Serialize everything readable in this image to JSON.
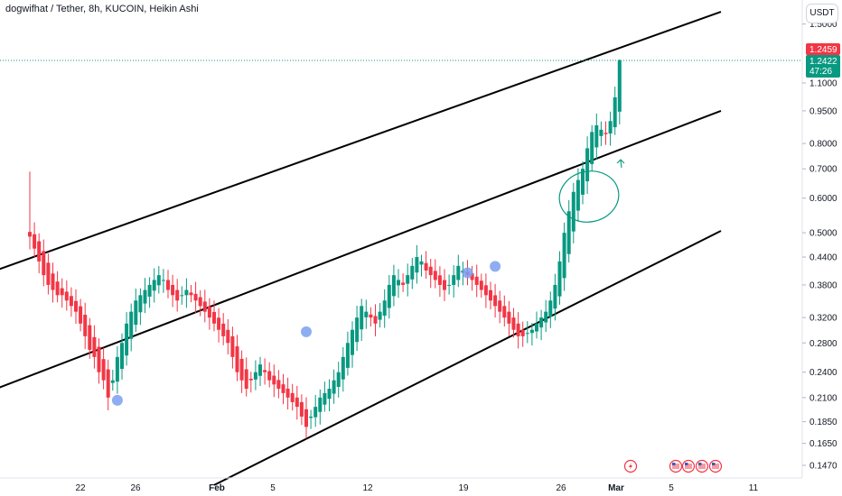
{
  "header": {
    "title": "dogwifhat / Tether, 8h, KUCOIN, Heikin Ashi",
    "currency": "USDT"
  },
  "price_tags": {
    "high_price": "1.2459",
    "last_price": "1.2422",
    "countdown": "47:26",
    "high_color": "#f23645",
    "last_color": "#089981"
  },
  "colors": {
    "up": "#089981",
    "down": "#f23645",
    "channel": "#000000",
    "marker": "#7b9ff0",
    "annotation": "#089981",
    "event_icon": "#f23645"
  },
  "chart_data": {
    "type": "candlestick",
    "style": "Heikin Ashi",
    "symbol": "dogwifhat / Tether",
    "interval": "8h",
    "exchange": "KUCOIN",
    "y_scale": "log",
    "ylim": [
      0.138,
      1.6
    ],
    "y_ticks": [
      "1.5000",
      "1.1000",
      "0.9500",
      "0.8000",
      "0.7000",
      "0.6000",
      "0.5000",
      "0.4400",
      "0.3800",
      "0.3200",
      "0.2800",
      "0.2400",
      "0.2100",
      "0.1850",
      "0.1650",
      "0.1470"
    ],
    "x_ticks": [
      {
        "label": "22",
        "bold": false
      },
      {
        "label": "26",
        "bold": false
      },
      {
        "label": "Feb",
        "bold": true
      },
      {
        "label": "5",
        "bold": false
      },
      {
        "label": "12",
        "bold": false
      },
      {
        "label": "19",
        "bold": false
      },
      {
        "label": "26",
        "bold": false
      },
      {
        "label": "Mar",
        "bold": true
      },
      {
        "label": "5",
        "bold": false
      },
      {
        "label": "11",
        "bold": false
      }
    ],
    "closes": [
      0.49,
      0.46,
      0.43,
      0.4,
      0.38,
      0.37,
      0.36,
      0.36,
      0.35,
      0.34,
      0.33,
      0.31,
      0.29,
      0.27,
      0.26,
      0.24,
      0.23,
      0.21,
      0.23,
      0.26,
      0.28,
      0.31,
      0.33,
      0.35,
      0.36,
      0.37,
      0.38,
      0.39,
      0.4,
      0.39,
      0.37,
      0.36,
      0.35,
      0.36,
      0.37,
      0.36,
      0.35,
      0.34,
      0.33,
      0.32,
      0.31,
      0.3,
      0.29,
      0.28,
      0.26,
      0.24,
      0.23,
      0.22,
      0.23,
      0.24,
      0.25,
      0.24,
      0.23,
      0.225,
      0.22,
      0.215,
      0.21,
      0.205,
      0.2,
      0.19,
      0.18,
      0.19,
      0.2,
      0.21,
      0.215,
      0.22,
      0.23,
      0.24,
      0.26,
      0.28,
      0.3,
      0.32,
      0.34,
      0.33,
      0.32,
      0.31,
      0.33,
      0.35,
      0.38,
      0.4,
      0.39,
      0.38,
      0.4,
      0.42,
      0.44,
      0.43,
      0.41,
      0.4,
      0.39,
      0.38,
      0.37,
      0.38,
      0.4,
      0.42,
      0.41,
      0.4,
      0.39,
      0.38,
      0.37,
      0.36,
      0.35,
      0.34,
      0.33,
      0.32,
      0.31,
      0.3,
      0.29,
      0.29,
      0.295,
      0.3,
      0.31,
      0.32,
      0.33,
      0.35,
      0.38,
      0.43,
      0.5,
      0.56,
      0.62,
      0.66,
      0.7,
      0.78,
      0.85,
      0.88,
      0.86,
      0.84,
      0.9,
      1.02,
      1.24
    ],
    "channels": [
      {
        "name": "",
        "from": {
          "i": -35,
          "price": 0.323
        },
        "to": {
          "i": 150,
          "price": 1.6
        }
      },
      {
        "name": "",
        "from": {
          "i": -35,
          "price": 0.17
        },
        "to": {
          "i": 150,
          "price": 0.95
        }
      },
      {
        "name": "",
        "from": {
          "i": 40,
          "price": 0.1325
        },
        "to": {
          "i": 150,
          "price": 0.505
        }
      }
    ],
    "markers": [
      {
        "i": 19,
        "price": 0.207
      },
      {
        "i": 60,
        "price": 0.297
      },
      {
        "i": 95,
        "price": 0.405
      },
      {
        "i": 101,
        "price": 0.419
      }
    ],
    "events": [
      {
        "kind": "lightning"
      },
      {
        "kind": "us-flag"
      },
      {
        "kind": "us-flag"
      },
      {
        "kind": "us-flag"
      },
      {
        "kind": "us-flag"
      }
    ]
  }
}
